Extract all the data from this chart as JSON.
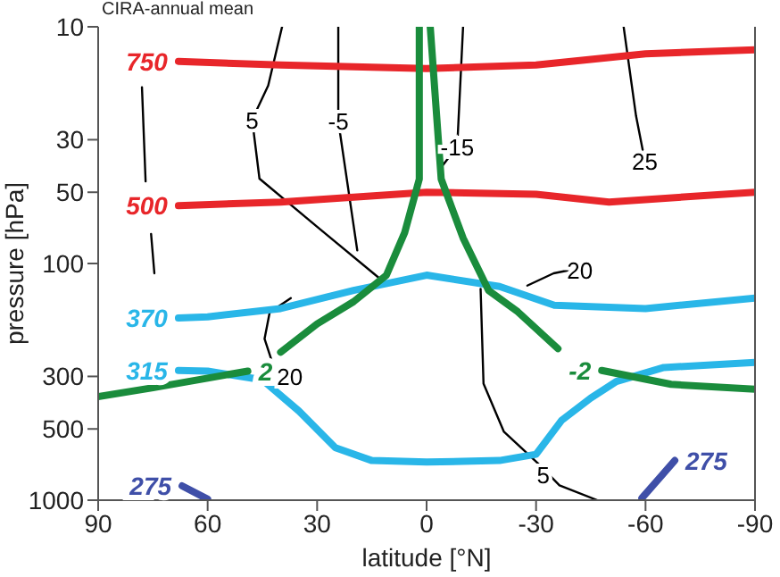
{
  "chart_data": {
    "type": "line",
    "title": "CIRA-annual mean",
    "xlabel": "latitude [°N]",
    "ylabel": "pressure [hPa]",
    "log": "y",
    "xlim": [
      90,
      -90
    ],
    "xticks": [
      90,
      60,
      30,
      0,
      -30,
      -60,
      -90
    ],
    "ylim": [
      1000,
      10
    ],
    "yticks": [
      10,
      30,
      50,
      100,
      300,
      500,
      1000
    ],
    "series": [
      {
        "color": "#000000",
        "x": [
          78,
          77,
          76,
          75.5,
          74.6
        ],
        "values": [
          18,
          45,
          null,
          75,
          110
        ]
      },
      {
        "color": "#000000",
        "x": [
          39.6,
          43.4,
          47.8,
          45.8,
          30,
          12.2
        ],
        "values": [
          10,
          17.7,
          24.7,
          43.8,
          70,
          118
        ]
      },
      {
        "color": "#000000",
        "x": [
          24.2,
          24.2,
          19
        ],
        "values": [
          10,
          25,
          88
        ]
      },
      {
        "color": "#000000",
        "x": [
          -10,
          -8.4,
          -3.6
        ],
        "values": [
          10,
          32,
          40
        ]
      },
      {
        "color": "#000000",
        "x": [
          -54,
          -57.4,
          -59.8
        ],
        "values": [
          10,
          23.8,
          36.8
        ]
      },
      {
        "color": "#000000",
        "x": [
          -27.6,
          -34.8,
          -40
        ],
        "values": [
          124,
          110,
          106
        ]
      },
      {
        "color": "#000000",
        "x": [
          -14.8,
          -15.6,
          -21.2,
          -30.8,
          -36.4,
          -46.8
        ],
        "values": [
          128,
          322,
          514,
          705,
          866,
          1000
        ]
      },
      {
        "color": "#000000",
        "x": [
          37.2,
          43,
          44.4,
          42,
          38.8
        ],
        "values": [
          140,
          161,
          208,
          270,
          296
        ]
      },
      {
        "name": "750",
        "color": "#e8262a",
        "x": [
          68,
          40,
          0,
          -30,
          -60,
          -90
        ],
        "values": [
          14,
          14.5,
          15,
          14.5,
          13,
          12.5
        ]
      },
      {
        "name": "500",
        "color": "#e8262a",
        "x": [
          68,
          40,
          0,
          -30,
          -50,
          -90
        ],
        "values": [
          57,
          55,
          50,
          51,
          55,
          50
        ]
      },
      {
        "name": "370",
        "color": "#29b6e8",
        "x": [
          68,
          60,
          40,
          20,
          0,
          -20,
          -35,
          -60,
          -90
        ],
        "values": [
          170,
          168,
          155,
          130,
          112,
          125,
          150,
          155,
          140
        ]
      },
      {
        "name": "315",
        "color": "#29b6e8",
        "x": [
          68,
          60,
          45,
          35,
          25,
          15,
          0,
          -20,
          -30,
          -37,
          -45,
          -52,
          -65,
          -90
        ],
        "values": [
          283,
          285,
          310,
          420,
          600,
          680,
          690,
          680,
          640,
          460,
          370,
          315,
          275,
          262
        ]
      },
      {
        "name": "275",
        "color": "#3f4fa8",
        "x": [
          67,
          60
        ],
        "values": [
          870,
          990
        ]
      },
      {
        "name": "275",
        "color": "#3f4fa8",
        "x": [
          -68,
          -64,
          -59
        ],
        "values": [
          680,
          800,
          980
        ]
      },
      {
        "name": "2",
        "color": "#1a8c3c",
        "x": [
          49,
          60,
          75,
          90
        ],
        "values": [
          285,
          305,
          335,
          365
        ]
      },
      {
        "color": "#1a8c3c",
        "x": [
          40,
          30,
          20,
          11,
          6,
          2,
          2
        ],
        "values": [
          237,
          180,
          145,
          112,
          74,
          44,
          10
        ]
      },
      {
        "name": "-2",
        "color": "#1a8c3c",
        "x": [
          -48,
          -67,
          -90
        ],
        "values": [
          283,
          324,
          340
        ]
      },
      {
        "color": "#1a8c3c",
        "x": [
          -36,
          -25,
          -17,
          -10,
          -4,
          -1
        ],
        "values": [
          229,
          160,
          130,
          78,
          44,
          10
        ]
      }
    ],
    "annotations": [
      {
        "text": "5",
        "x": 47.8,
        "y": 24.7
      },
      {
        "text": "-5",
        "x": 24.2,
        "y": 25
      },
      {
        "text": "-15",
        "x": -8.4,
        "y": 32
      },
      {
        "text": "25",
        "x": -59.8,
        "y": 36.8
      },
      {
        "text": "20",
        "x": -42,
        "y": 106
      },
      {
        "text": "20",
        "x": 37.5,
        "y": 300
      },
      {
        "text": "5",
        "x": -32,
        "y": 780
      }
    ]
  }
}
